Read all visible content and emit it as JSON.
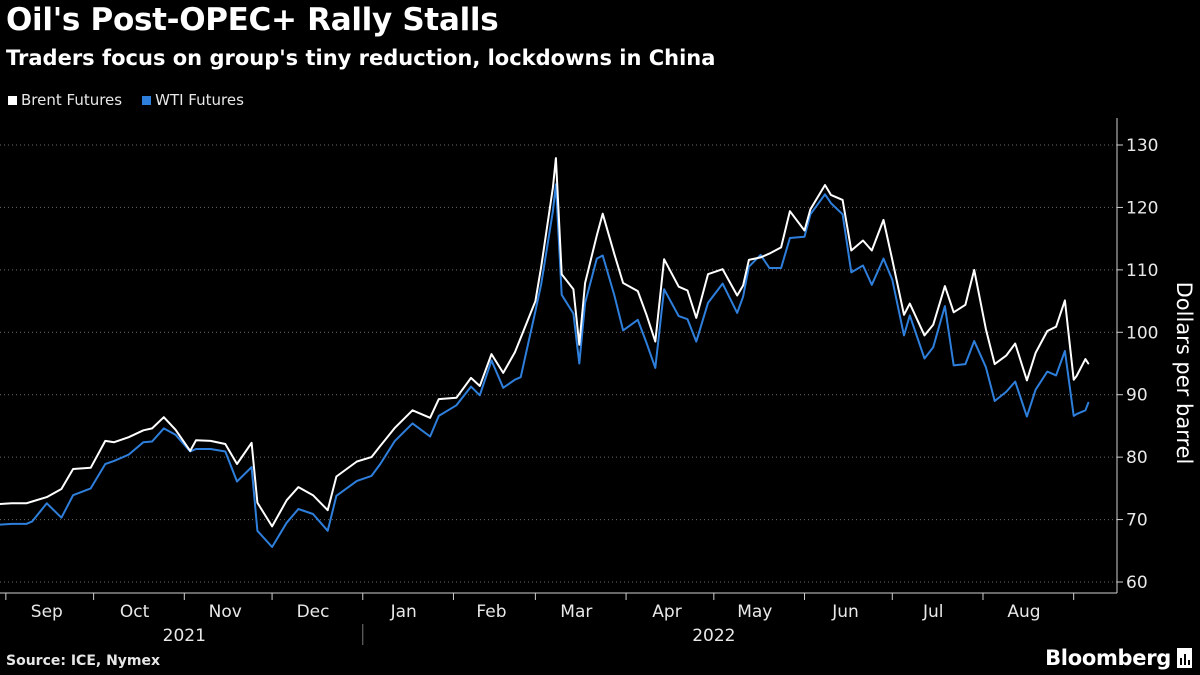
{
  "header": {
    "title": "Oil's Post-OPEC+ Rally Stalls",
    "subtitle": "Traders focus on group's tiny reduction, lockdowns in China"
  },
  "legend": [
    {
      "label": "Brent Futures",
      "color": "#ffffff"
    },
    {
      "label": "WTI Futures",
      "color": "#2e7fdc"
    }
  ],
  "footer": {
    "source": "Source: ICE, Nymex",
    "brand": "Bloomberg"
  },
  "chart_data": {
    "type": "line",
    "title": "Oil's Post-OPEC+ Rally Stalls",
    "subtitle": "Traders focus on group's tiny reduction, lockdowns in China",
    "ylabel": "Dollars per barrel",
    "ylim": [
      60,
      130
    ],
    "yticks": [
      60,
      70,
      80,
      90,
      100,
      110,
      120,
      130
    ],
    "y_axis_side": "right",
    "xlim": [
      "2021-08-30",
      "2022-09-10"
    ],
    "x_month_ticks": [
      {
        "label": "Sep",
        "date": "2021-09-15"
      },
      {
        "label": "Oct",
        "date": "2021-10-15"
      },
      {
        "label": "Nov",
        "date": "2021-11-15"
      },
      {
        "label": "Dec",
        "date": "2021-12-15"
      },
      {
        "label": "Jan",
        "date": "2022-01-15"
      },
      {
        "label": "Feb",
        "date": "2022-02-14"
      },
      {
        "label": "Mar",
        "date": "2022-03-15"
      },
      {
        "label": "Apr",
        "date": "2022-04-15"
      },
      {
        "label": "May",
        "date": "2022-05-15"
      },
      {
        "label": "Jun",
        "date": "2022-06-15"
      },
      {
        "label": "Jul",
        "date": "2022-07-15"
      },
      {
        "label": "Aug",
        "date": "2022-08-15"
      }
    ],
    "x_year_labels": [
      {
        "label": "2021",
        "date": "2021-11-01"
      },
      {
        "label": "2022",
        "date": "2022-05-01"
      }
    ],
    "x_year_divider": "2022-01-01",
    "grid": "horizontal-dotted",
    "legend_position": "top-left",
    "series": [
      {
        "name": "Brent Futures",
        "color": "#ffffff",
        "points": [
          [
            "2021-08-30",
            72.5
          ],
          [
            "2021-09-03",
            72.6
          ],
          [
            "2021-09-08",
            72.6
          ],
          [
            "2021-09-10",
            72.9
          ],
          [
            "2021-09-15",
            73.6
          ],
          [
            "2021-09-20",
            74.9
          ],
          [
            "2021-09-24",
            78.1
          ],
          [
            "2021-09-30",
            78.3
          ],
          [
            "2021-10-05",
            82.6
          ],
          [
            "2021-10-08",
            82.4
          ],
          [
            "2021-10-13",
            83.2
          ],
          [
            "2021-10-18",
            84.3
          ],
          [
            "2021-10-21",
            84.6
          ],
          [
            "2021-10-25",
            86.4
          ],
          [
            "2021-10-29",
            84.4
          ],
          [
            "2021-11-03",
            81.0
          ],
          [
            "2021-11-05",
            82.7
          ],
          [
            "2021-11-10",
            82.6
          ],
          [
            "2021-11-15",
            82.1
          ],
          [
            "2021-11-19",
            78.9
          ],
          [
            "2021-11-24",
            82.3
          ],
          [
            "2021-11-26",
            72.7
          ],
          [
            "2021-12-01",
            68.9
          ],
          [
            "2021-12-06",
            73.1
          ],
          [
            "2021-12-10",
            75.2
          ],
          [
            "2021-12-15",
            73.9
          ],
          [
            "2021-12-20",
            71.5
          ],
          [
            "2021-12-23",
            76.9
          ],
          [
            "2021-12-30",
            79.3
          ],
          [
            "2022-01-04",
            80.0
          ],
          [
            "2022-01-07",
            81.8
          ],
          [
            "2022-01-12",
            84.7
          ],
          [
            "2022-01-18",
            87.5
          ],
          [
            "2022-01-24",
            86.3
          ],
          [
            "2022-01-27",
            89.3
          ],
          [
            "2022-02-02",
            89.5
          ],
          [
            "2022-02-07",
            92.7
          ],
          [
            "2022-02-10",
            91.4
          ],
          [
            "2022-02-14",
            96.5
          ],
          [
            "2022-02-18",
            93.5
          ],
          [
            "2022-02-22",
            96.8
          ],
          [
            "2022-02-24",
            99.1
          ],
          [
            "2022-03-01",
            105.0
          ],
          [
            "2022-03-03",
            110.5
          ],
          [
            "2022-03-07",
            123.2
          ],
          [
            "2022-03-08",
            127.9
          ],
          [
            "2022-03-10",
            109.3
          ],
          [
            "2022-03-14",
            106.9
          ],
          [
            "2022-03-16",
            98.0
          ],
          [
            "2022-03-18",
            107.9
          ],
          [
            "2022-03-22",
            115.5
          ],
          [
            "2022-03-24",
            119.0
          ],
          [
            "2022-03-28",
            112.5
          ],
          [
            "2022-03-31",
            107.9
          ],
          [
            "2022-04-05",
            106.6
          ],
          [
            "2022-04-08",
            102.8
          ],
          [
            "2022-04-11",
            98.5
          ],
          [
            "2022-04-14",
            111.7
          ],
          [
            "2022-04-19",
            107.3
          ],
          [
            "2022-04-22",
            106.7
          ],
          [
            "2022-04-25",
            102.3
          ],
          [
            "2022-04-29",
            109.3
          ],
          [
            "2022-05-04",
            110.1
          ],
          [
            "2022-05-09",
            105.9
          ],
          [
            "2022-05-11",
            107.5
          ],
          [
            "2022-05-13",
            111.6
          ],
          [
            "2022-05-17",
            112.0
          ],
          [
            "2022-05-20",
            112.6
          ],
          [
            "2022-05-24",
            113.6
          ],
          [
            "2022-05-27",
            119.4
          ],
          [
            "2022-06-01",
            116.3
          ],
          [
            "2022-06-03",
            119.7
          ],
          [
            "2022-06-08",
            123.6
          ],
          [
            "2022-06-10",
            122.0
          ],
          [
            "2022-06-14",
            121.2
          ],
          [
            "2022-06-17",
            113.1
          ],
          [
            "2022-06-21",
            114.7
          ],
          [
            "2022-06-24",
            113.1
          ],
          [
            "2022-06-28",
            118.0
          ],
          [
            "2022-07-01",
            111.6
          ],
          [
            "2022-07-05",
            102.8
          ],
          [
            "2022-07-07",
            104.6
          ],
          [
            "2022-07-12",
            99.5
          ],
          [
            "2022-07-15",
            101.2
          ],
          [
            "2022-07-19",
            107.4
          ],
          [
            "2022-07-22",
            103.2
          ],
          [
            "2022-07-26",
            104.4
          ],
          [
            "2022-07-29",
            110.0
          ],
          [
            "2022-08-02",
            100.5
          ],
          [
            "2022-08-05",
            94.9
          ],
          [
            "2022-08-09",
            96.3
          ],
          [
            "2022-08-12",
            98.2
          ],
          [
            "2022-08-16",
            92.3
          ],
          [
            "2022-08-19",
            96.7
          ],
          [
            "2022-08-23",
            100.2
          ],
          [
            "2022-08-26",
            100.9
          ],
          [
            "2022-08-29",
            105.1
          ],
          [
            "2022-09-01",
            92.4
          ],
          [
            "2022-09-02",
            93.0
          ],
          [
            "2022-09-05",
            95.7
          ],
          [
            "2022-09-06",
            95.0
          ]
        ]
      },
      {
        "name": "WTI Futures",
        "color": "#2e7fdc",
        "points": [
          [
            "2021-08-30",
            69.2
          ],
          [
            "2021-09-03",
            69.3
          ],
          [
            "2021-09-08",
            69.3
          ],
          [
            "2021-09-10",
            69.7
          ],
          [
            "2021-09-15",
            72.6
          ],
          [
            "2021-09-20",
            70.3
          ],
          [
            "2021-09-24",
            73.9
          ],
          [
            "2021-09-30",
            75.0
          ],
          [
            "2021-10-05",
            78.9
          ],
          [
            "2021-10-08",
            79.4
          ],
          [
            "2021-10-13",
            80.4
          ],
          [
            "2021-10-18",
            82.4
          ],
          [
            "2021-10-21",
            82.5
          ],
          [
            "2021-10-25",
            84.6
          ],
          [
            "2021-10-29",
            83.6
          ],
          [
            "2021-11-03",
            80.9
          ],
          [
            "2021-11-05",
            81.3
          ],
          [
            "2021-11-10",
            81.3
          ],
          [
            "2021-11-15",
            80.9
          ],
          [
            "2021-11-19",
            76.1
          ],
          [
            "2021-11-24",
            78.4
          ],
          [
            "2021-11-26",
            68.2
          ],
          [
            "2021-12-01",
            65.6
          ],
          [
            "2021-12-06",
            69.5
          ],
          [
            "2021-12-10",
            71.7
          ],
          [
            "2021-12-15",
            70.9
          ],
          [
            "2021-12-20",
            68.2
          ],
          [
            "2021-12-23",
            73.8
          ],
          [
            "2021-12-30",
            76.2
          ],
          [
            "2022-01-04",
            77.0
          ],
          [
            "2022-01-07",
            78.9
          ],
          [
            "2022-01-12",
            82.6
          ],
          [
            "2022-01-18",
            85.4
          ],
          [
            "2022-01-24",
            83.3
          ],
          [
            "2022-01-27",
            86.6
          ],
          [
            "2022-02-02",
            88.3
          ],
          [
            "2022-02-07",
            91.3
          ],
          [
            "2022-02-10",
            89.9
          ],
          [
            "2022-02-14",
            95.5
          ],
          [
            "2022-02-18",
            91.1
          ],
          [
            "2022-02-22",
            92.4
          ],
          [
            "2022-02-24",
            92.8
          ],
          [
            "2022-03-01",
            103.4
          ],
          [
            "2022-03-03",
            107.7
          ],
          [
            "2022-03-07",
            119.4
          ],
          [
            "2022-03-08",
            123.7
          ],
          [
            "2022-03-10",
            106.0
          ],
          [
            "2022-03-14",
            103.0
          ],
          [
            "2022-03-16",
            95.0
          ],
          [
            "2022-03-18",
            104.7
          ],
          [
            "2022-03-22",
            111.8
          ],
          [
            "2022-03-24",
            112.3
          ],
          [
            "2022-03-28",
            105.9
          ],
          [
            "2022-03-31",
            100.3
          ],
          [
            "2022-04-05",
            102.0
          ],
          [
            "2022-04-08",
            98.3
          ],
          [
            "2022-04-11",
            94.3
          ],
          [
            "2022-04-14",
            106.9
          ],
          [
            "2022-04-19",
            102.6
          ],
          [
            "2022-04-22",
            102.1
          ],
          [
            "2022-04-25",
            98.5
          ],
          [
            "2022-04-29",
            104.7
          ],
          [
            "2022-05-04",
            107.8
          ],
          [
            "2022-05-09",
            103.1
          ],
          [
            "2022-05-11",
            105.7
          ],
          [
            "2022-05-13",
            110.5
          ],
          [
            "2022-05-17",
            112.4
          ],
          [
            "2022-05-20",
            110.3
          ],
          [
            "2022-05-24",
            110.3
          ],
          [
            "2022-05-27",
            115.1
          ],
          [
            "2022-06-01",
            115.3
          ],
          [
            "2022-06-03",
            118.9
          ],
          [
            "2022-06-08",
            122.1
          ],
          [
            "2022-06-10",
            120.7
          ],
          [
            "2022-06-14",
            118.9
          ],
          [
            "2022-06-17",
            109.6
          ],
          [
            "2022-06-21",
            110.7
          ],
          [
            "2022-06-24",
            107.6
          ],
          [
            "2022-06-28",
            111.8
          ],
          [
            "2022-07-01",
            108.4
          ],
          [
            "2022-07-05",
            99.5
          ],
          [
            "2022-07-07",
            102.7
          ],
          [
            "2022-07-12",
            95.8
          ],
          [
            "2022-07-15",
            97.6
          ],
          [
            "2022-07-19",
            104.2
          ],
          [
            "2022-07-22",
            94.7
          ],
          [
            "2022-07-26",
            94.9
          ],
          [
            "2022-07-29",
            98.6
          ],
          [
            "2022-08-02",
            94.4
          ],
          [
            "2022-08-05",
            89.0
          ],
          [
            "2022-08-09",
            90.5
          ],
          [
            "2022-08-12",
            92.1
          ],
          [
            "2022-08-16",
            86.5
          ],
          [
            "2022-08-19",
            90.8
          ],
          [
            "2022-08-23",
            93.7
          ],
          [
            "2022-08-26",
            93.1
          ],
          [
            "2022-08-29",
            97.0
          ],
          [
            "2022-09-01",
            86.6
          ],
          [
            "2022-09-02",
            86.9
          ],
          [
            "2022-09-05",
            87.5
          ],
          [
            "2022-09-06",
            88.7
          ]
        ]
      }
    ]
  }
}
